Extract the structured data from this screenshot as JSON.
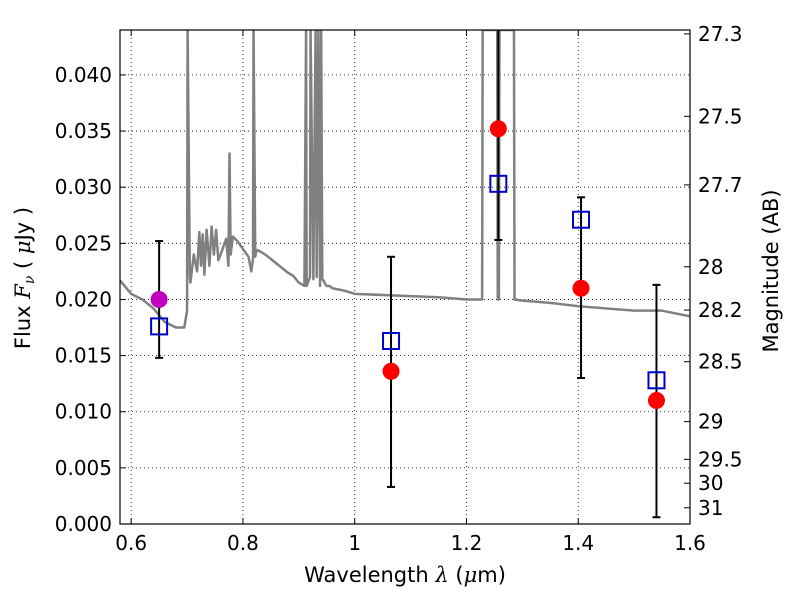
{
  "chart_data": {
    "type": "scatter",
    "title": "",
    "xlabel": "Wavelength",
    "xlabel_symbol": "λ",
    "xlabel_unit_prefix": "(",
    "xlabel_unit_mu": "μ",
    "xlabel_unit_rest": "m)",
    "ylabel": "Flux",
    "ylabel_symbol": "F",
    "ylabel_subscript": "ν",
    "ylabel_unit_prefix": "(",
    "ylabel_unit_mu": "μ",
    "ylabel_unit_rest": "Jy )",
    "y2label": "Magnitude (AB)",
    "xlim": [
      0.58,
      1.6
    ],
    "ylim": [
      0.0,
      0.044
    ],
    "grid": true,
    "x_ticks": [
      0.6,
      0.8,
      1.0,
      1.2,
      1.4,
      1.6
    ],
    "x_tick_labels": [
      "0.6",
      "0.8",
      "1",
      "1.2",
      "1.4",
      "1.6"
    ],
    "y_ticks": [
      0.0,
      0.005,
      0.01,
      0.015,
      0.02,
      0.025,
      0.03,
      0.035,
      0.04
    ],
    "y_tick_labels": [
      "0.000",
      "0.005",
      "0.010",
      "0.015",
      "0.020",
      "0.025",
      "0.030",
      "0.035",
      "0.040"
    ],
    "y2_ticks": [
      27.3,
      27.5,
      27.7,
      28,
      28.2,
      28.5,
      29,
      29.5,
      30,
      31
    ],
    "y2_tick_labels": [
      "27.3",
      "27.5",
      "27.7",
      "28",
      "28.2",
      "28.5",
      "29",
      "29.5",
      "30",
      "31"
    ],
    "observed": [
      {
        "x": 0.65,
        "y": 0.02,
        "yerr_low": 0.0148,
        "yerr_high": 0.0252,
        "color": "#bf00bf"
      },
      {
        "x": 1.065,
        "y": 0.0136,
        "yerr_low": 0.0033,
        "yerr_high": 0.0238,
        "color": "#ff0000"
      },
      {
        "x": 1.257,
        "y": 0.0352,
        "yerr_low": 0.0253,
        "yerr_high": 0.0451,
        "color": "#ff0000"
      },
      {
        "x": 1.405,
        "y": 0.021,
        "yerr_low": 0.013,
        "yerr_high": 0.0291,
        "color": "#ff0000"
      },
      {
        "x": 1.54,
        "y": 0.011,
        "yerr_low": 0.0006,
        "yerr_high": 0.0213,
        "color": "#ff0000"
      }
    ],
    "model_points": {
      "color": "#0000cc",
      "x": [
        0.65,
        1.065,
        1.257,
        1.405,
        1.54
      ],
      "y": [
        0.0176,
        0.0163,
        0.0303,
        0.0271,
        0.0128
      ]
    },
    "spectrum": {
      "color": "#808080",
      "x": [
        0.58,
        0.6,
        0.62,
        0.64,
        0.66,
        0.68,
        0.695,
        0.7,
        0.701,
        0.705,
        0.706,
        0.712,
        0.718,
        0.722,
        0.725,
        0.728,
        0.731,
        0.735,
        0.74,
        0.744,
        0.748,
        0.752,
        0.756,
        0.76,
        0.765,
        0.77,
        0.774,
        0.776,
        0.778,
        0.782,
        0.79,
        0.8,
        0.81,
        0.815,
        0.818,
        0.819,
        0.822,
        0.824,
        0.826,
        0.83,
        0.84,
        0.85,
        0.86,
        0.87,
        0.88,
        0.89,
        0.9,
        0.91,
        0.913,
        0.914,
        0.92,
        0.921,
        0.926,
        0.93,
        0.932,
        0.935,
        0.938,
        0.94,
        0.942,
        0.944,
        0.946,
        0.948,
        0.95,
        0.955,
        0.96,
        0.98,
        1.0,
        1.05,
        1.1,
        1.15,
        1.2,
        1.228,
        1.229,
        1.255,
        1.256,
        1.258,
        1.259,
        1.285,
        1.286,
        1.3,
        1.35,
        1.4,
        1.45,
        1.5,
        1.55,
        1.58,
        1.6
      ],
      "y": [
        0.0217,
        0.0205,
        0.02,
        0.0192,
        0.018,
        0.0175,
        0.0175,
        0.019,
        0.044,
        0.022,
        0.0215,
        0.024,
        0.0225,
        0.026,
        0.023,
        0.0258,
        0.0222,
        0.0262,
        0.023,
        0.0265,
        0.024,
        0.0262,
        0.0235,
        0.024,
        0.0247,
        0.0254,
        0.023,
        0.033,
        0.024,
        0.0256,
        0.0252,
        0.0245,
        0.0238,
        0.0225,
        0.0236,
        0.044,
        0.0238,
        0.0243,
        0.0244,
        0.0243,
        0.024,
        0.0236,
        0.0232,
        0.0228,
        0.0224,
        0.0221,
        0.0215,
        0.0212,
        0.044,
        0.0212,
        0.022,
        0.044,
        0.0218,
        0.044,
        0.022,
        0.044,
        0.0212,
        0.044,
        0.0218,
        0.0217,
        0.0215,
        0.0213,
        0.0212,
        0.0212,
        0.021,
        0.0208,
        0.0205,
        0.0204,
        0.0203,
        0.0202,
        0.02,
        0.02,
        0.044,
        0.044,
        0.02,
        0.02,
        0.044,
        0.044,
        0.02,
        0.0199,
        0.0197,
        0.0194,
        0.0192,
        0.019,
        0.019,
        0.0187,
        0.0185
      ]
    }
  }
}
